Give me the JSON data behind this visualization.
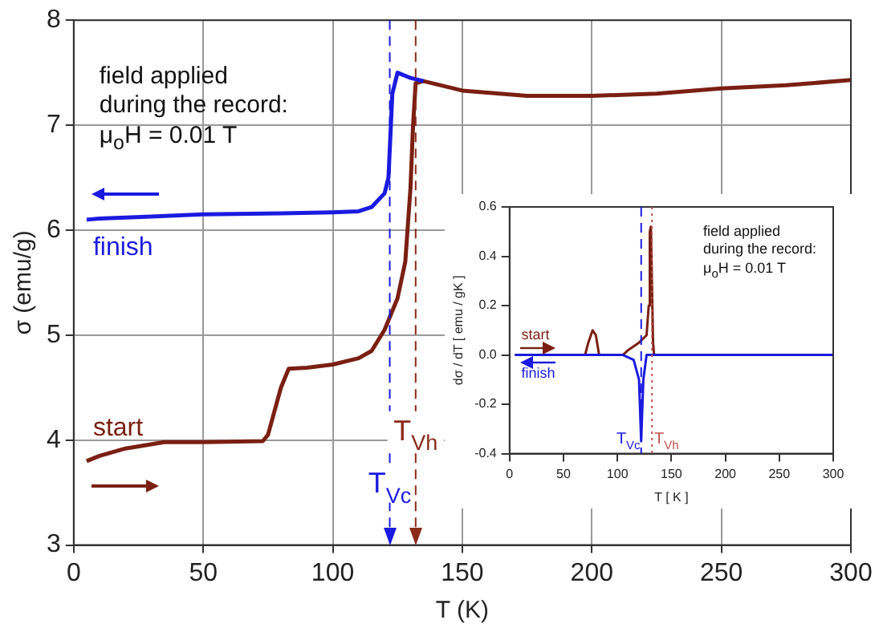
{
  "chart_data": [
    {
      "type": "line",
      "xlabel": "T (K)",
      "ylabel": "σ (emu/g)",
      "xlim": [
        0,
        300
      ],
      "ylim": [
        3,
        8
      ],
      "xticks": [
        0,
        50,
        100,
        150,
        200,
        250,
        300
      ],
      "yticks": [
        3,
        4,
        5,
        6,
        7,
        8
      ],
      "grid": true,
      "line_style": "solid",
      "annotations": [
        "field applied\nduring the record:\nμ$_{o}$H = 0.01 T"
      ],
      "ref_lines": [
        {
          "axis": "x",
          "value": 122,
          "label": "T$_{Vc}$",
          "color": "#1a1ae0",
          "line_style": "dashed"
        },
        {
          "axis": "x",
          "value": 132,
          "label": "T$_{Vh}$",
          "color": "#8b2a1a",
          "line_style": "dashed"
        }
      ],
      "series": [
        {
          "name": "start",
          "color": "#7a1f12",
          "x": [
            5,
            10,
            20,
            35,
            50,
            73,
            75,
            80,
            83,
            90,
            100,
            110,
            115,
            120,
            125,
            128,
            130,
            131,
            132,
            135,
            150,
            175,
            200,
            225,
            250,
            275,
            300
          ],
          "values": [
            3.8,
            3.85,
            3.92,
            3.98,
            3.98,
            3.99,
            4.05,
            4.5,
            4.68,
            4.69,
            4.72,
            4.78,
            4.85,
            5.05,
            5.35,
            5.7,
            6.4,
            7.0,
            7.4,
            7.42,
            7.33,
            7.28,
            7.28,
            7.3,
            7.35,
            7.38,
            7.43
          ]
        },
        {
          "name": "finish",
          "color": "#1a1ae0",
          "x": [
            5,
            10,
            30,
            50,
            80,
            100,
            110,
            115,
            120,
            121.5,
            123,
            125,
            130,
            135
          ],
          "values": [
            6.1,
            6.11,
            6.13,
            6.15,
            6.16,
            6.17,
            6.18,
            6.22,
            6.35,
            6.5,
            7.3,
            7.5,
            7.45,
            7.42
          ]
        }
      ]
    },
    {
      "type": "line",
      "xlabel": "T [ K ]",
      "ylabel": "dσ / dT [ emu / gK ]",
      "xlim": [
        0,
        300
      ],
      "ylim": [
        -0.4,
        0.6
      ],
      "xticks": [
        0,
        50,
        100,
        150,
        200,
        250,
        300
      ],
      "yticks": [
        -0.4,
        -0.2,
        {
          "value": 0,
          "label": "0.0"
        },
        0.2,
        0.4,
        0.6
      ],
      "line_style": "solid",
      "annotations": [
        "field applied\nduring the record:\nμ$_{o}$H = 0.01 T"
      ],
      "ref_lines": [
        {
          "axis": "x",
          "value": 122,
          "label": "T$_{Vc}$",
          "color": "#1a1ae0",
          "line_style": "dashed"
        },
        {
          "axis": "x",
          "value": 132,
          "label": "T$_{Vh}$",
          "color": "#c0504d",
          "line_style": "dotted"
        }
      ],
      "series": [
        {
          "name": "start",
          "color": "#7a1f12",
          "x": [
            5,
            70,
            73,
            77,
            80,
            83,
            105,
            110,
            120,
            127,
            129,
            130,
            131,
            133,
            134,
            300
          ],
          "values": [
            0,
            0,
            0.05,
            0.1,
            0.08,
            0,
            0,
            0.02,
            0.05,
            0.08,
            0.2,
            0.5,
            0.52,
            0.05,
            0,
            0
          ]
        },
        {
          "name": "finish",
          "color": "#1a1ae0",
          "x": [
            5,
            105,
            115,
            120,
            122,
            124,
            127,
            300
          ],
          "values": [
            0,
            0,
            -0.02,
            -0.1,
            -0.35,
            -0.1,
            0,
            0
          ]
        }
      ]
    }
  ]
}
